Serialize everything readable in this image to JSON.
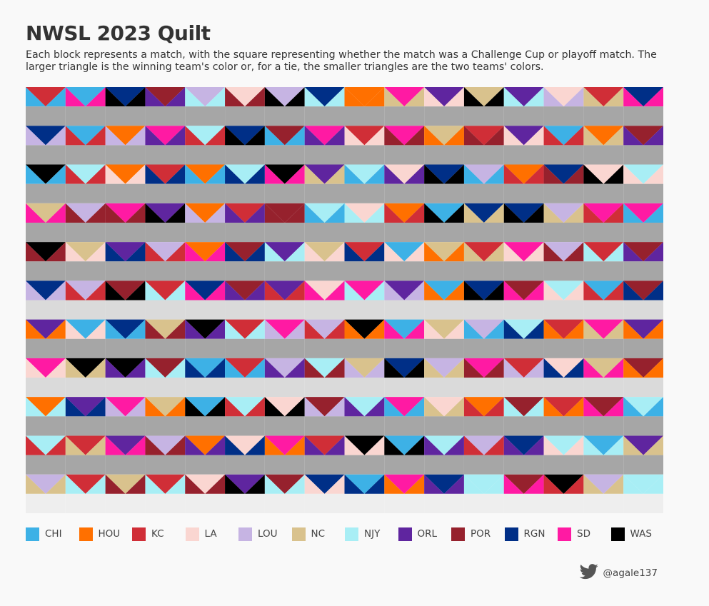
{
  "title": "NWSL 2023 Quilt",
  "subtitle": "Each block represents a match, with the square representing whether the match was a Challenge Cup or playoff match. The larger triangle is the winning team's color or, for a tie, the smaller triangles are the two teams' colors.",
  "credit": {
    "icon": "twitter-bird-icon",
    "handle": "@agale137"
  },
  "chart_data": {
    "type": "heatmap",
    "title": "NWSL 2023 Quilt",
    "grid": {
      "columns": 16,
      "rows": 11
    },
    "square_colors": {
      "challenge_cup": "#dadada",
      "regular": "#a6a6a6",
      "playoff": "#eeeeee"
    },
    "teams": [
      {
        "code": "CHI",
        "color": "#3db1e6"
      },
      {
        "code": "HOU",
        "color": "#ff7000"
      },
      {
        "code": "KC",
        "color": "#d02e37"
      },
      {
        "code": "LA",
        "color": "#fad6d1"
      },
      {
        "code": "LOU",
        "color": "#c6b4e3"
      },
      {
        "code": "NC",
        "color": "#d9c28d"
      },
      {
        "code": "NJY",
        "color": "#a8eef5"
      },
      {
        "code": "ORL",
        "color": "#5f259f"
      },
      {
        "code": "POR",
        "color": "#96212d"
      },
      {
        "code": "RGN",
        "color": "#002f87"
      },
      {
        "code": "SD",
        "color": "#ff1aa3"
      },
      {
        "code": "WAS",
        "color": "#000000"
      }
    ],
    "matches": [
      [
        "KC",
        "CHI",
        "r"
      ],
      [
        "CHI",
        "SD",
        "r"
      ],
      [
        "RGN",
        "WAS",
        "r"
      ],
      [
        "POR",
        "ORL",
        "r"
      ],
      [
        "LOU",
        "NJY",
        "r"
      ],
      [
        "LA",
        "POR",
        "r"
      ],
      [
        "LOU",
        "WAS",
        "r"
      ],
      [
        "RGN",
        "NJY",
        "r"
      ],
      [
        "HOU",
        "HOU",
        "r"
      ],
      [
        "SD",
        "NC",
        "r"
      ],
      [
        "ORL",
        "LA",
        "r"
      ],
      [
        "NC",
        "WAS",
        "r"
      ],
      [
        "ORL",
        "NJY",
        "r"
      ],
      [
        "LA",
        "LOU",
        "r"
      ],
      [
        "KC",
        "NC",
        "r"
      ],
      [
        "RGN",
        "SD",
        "r"
      ],
      [
        "RGN",
        "LOU",
        "r"
      ],
      [
        "CHI",
        "KC",
        "r"
      ],
      [
        "HOU",
        "LOU",
        "r"
      ],
      [
        "SD",
        "ORL",
        "r"
      ],
      [
        "NJY",
        "KC",
        "r"
      ],
      [
        "RGN",
        "WAS",
        "r"
      ],
      [
        "POR",
        "CHI",
        "r"
      ],
      [
        "SD",
        "ORL",
        "r"
      ],
      [
        "KC",
        "LA",
        "r"
      ],
      [
        "SD",
        "POR",
        "r"
      ],
      [
        "NC",
        "HOU",
        "r"
      ],
      [
        "KC",
        "POR",
        "r"
      ],
      [
        "ORL",
        "LA",
        "r"
      ],
      [
        "CHI",
        "KC",
        "r"
      ],
      [
        "HOU",
        "NC",
        "r"
      ],
      [
        "POR",
        "ORL",
        "r"
      ],
      [
        "WAS",
        "CHI",
        "r"
      ],
      [
        "NJY",
        "KC",
        "r"
      ],
      [
        "HOU",
        "LA",
        "r"
      ],
      [
        "KC",
        "RGN",
        "r"
      ],
      [
        "HOU",
        "CHI",
        "r"
      ],
      [
        "NJY",
        "RGN",
        "r"
      ],
      [
        "WAS",
        "SD",
        "r"
      ],
      [
        "ORL",
        "NC",
        "r"
      ],
      [
        "NJY",
        "CHI",
        "r"
      ],
      [
        "LA",
        "ORL",
        "r"
      ],
      [
        "RGN",
        "WAS",
        "r"
      ],
      [
        "LOU",
        "CHI",
        "r"
      ],
      [
        "HOU",
        "KC",
        "r"
      ],
      [
        "RGN",
        "POR",
        "r"
      ],
      [
        "LA",
        "WAS",
        "r"
      ],
      [
        "NJY",
        "LA",
        "r"
      ],
      [
        "NC",
        "SD",
        "r"
      ],
      [
        "LOU",
        "POR",
        "r"
      ],
      [
        "SD",
        "POR",
        "r"
      ],
      [
        "ORL",
        "WAS",
        "r"
      ],
      [
        "HOU",
        "LOU",
        "r"
      ],
      [
        "KC",
        "ORL",
        "r"
      ],
      [
        "POR",
        "POR",
        "r"
      ],
      [
        "NJY",
        "CHI",
        "r"
      ],
      [
        "LA",
        "NJY",
        "r"
      ],
      [
        "HOU",
        "KC",
        "r"
      ],
      [
        "CHI",
        "WAS",
        "r"
      ],
      [
        "RGN",
        "NC",
        "r"
      ],
      [
        "RGN",
        "WAS",
        "r"
      ],
      [
        "LOU",
        "NC",
        "r"
      ],
      [
        "SD",
        "KC",
        "r"
      ],
      [
        "SD",
        "CHI",
        "r"
      ],
      [
        "WAS",
        "POR",
        "r"
      ],
      [
        "NC",
        "LA",
        "r"
      ],
      [
        "ORL",
        "RGN",
        "r"
      ],
      [
        "LOU",
        "KC",
        "r"
      ],
      [
        "HOU",
        "SD",
        "r"
      ],
      [
        "POR",
        "RGN",
        "r"
      ],
      [
        "ORL",
        "NJY",
        "r"
      ],
      [
        "NC",
        "LA",
        "r"
      ],
      [
        "KC",
        "RGN",
        "r"
      ],
      [
        "CHI",
        "LA",
        "r"
      ],
      [
        "NC",
        "HOU",
        "r"
      ],
      [
        "KC",
        "NC",
        "r"
      ],
      [
        "SD",
        "LA",
        "r"
      ],
      [
        "LOU",
        "POR",
        "r"
      ],
      [
        "KC",
        "NJY",
        "r"
      ],
      [
        "POR",
        "ORL",
        "r"
      ],
      [
        "RGN",
        "LOU",
        "c"
      ],
      [
        "LOU",
        "KC",
        "c"
      ],
      [
        "POR",
        "WAS",
        "c"
      ],
      [
        "KC",
        "NJY",
        "c"
      ],
      [
        "RGN",
        "SD",
        "c"
      ],
      [
        "POR",
        "ORL",
        "c"
      ],
      [
        "ORL",
        "KC",
        "c"
      ],
      [
        "LA",
        "SD",
        "c"
      ],
      [
        "SD",
        "NJY",
        "c"
      ],
      [
        "ORL",
        "LOU",
        "c"
      ],
      [
        "CHI",
        "HOU",
        "c"
      ],
      [
        "RGN",
        "WAS",
        "c"
      ],
      [
        "POR",
        "SD",
        "c"
      ],
      [
        "NJY",
        "LA",
        "c"
      ],
      [
        "CHI",
        "KC",
        "c"
      ],
      [
        "POR",
        "RGN",
        "c"
      ],
      [
        "ORL",
        "HOU",
        "r"
      ],
      [
        "CHI",
        "LA",
        "r"
      ],
      [
        "RGN",
        "CHI",
        "r"
      ],
      [
        "NC",
        "POR",
        "r"
      ],
      [
        "WAS",
        "ORL",
        "r"
      ],
      [
        "KC",
        "NJY",
        "r"
      ],
      [
        "SD",
        "LOU",
        "r"
      ],
      [
        "LOU",
        "KC",
        "r"
      ],
      [
        "WAS",
        "HOU",
        "r"
      ],
      [
        "CHI",
        "SD",
        "r"
      ],
      [
        "NC",
        "LA",
        "r"
      ],
      [
        "LOU",
        "CHI",
        "r"
      ],
      [
        "NJY",
        "RGN",
        "r"
      ],
      [
        "KC",
        "HOU",
        "r"
      ],
      [
        "SD",
        "NC",
        "r"
      ],
      [
        "ORL",
        "HOU",
        "r"
      ],
      [
        "SD",
        "LA",
        "c"
      ],
      [
        "WAS",
        "NC",
        "c"
      ],
      [
        "WAS",
        "ORL",
        "c"
      ],
      [
        "POR",
        "NJY",
        "c"
      ],
      [
        "CHI",
        "RGN",
        "c"
      ],
      [
        "KC",
        "CHI",
        "c"
      ],
      [
        "LOU",
        "ORL",
        "c"
      ],
      [
        "NJY",
        "POR",
        "c"
      ],
      [
        "NC",
        "LOU",
        "c"
      ],
      [
        "RGN",
        "WAS",
        "c"
      ],
      [
        "LOU",
        "NC",
        "c"
      ],
      [
        "SD",
        "POR",
        "c"
      ],
      [
        "KC",
        "LOU",
        "c"
      ],
      [
        "LA",
        "RGN",
        "c"
      ],
      [
        "NC",
        "SD",
        "c"
      ],
      [
        "POR",
        "HOU",
        "c"
      ],
      [
        "HOU",
        "NJY",
        "r"
      ],
      [
        "ORL",
        "RGN",
        "r"
      ],
      [
        "SD",
        "LOU",
        "r"
      ],
      [
        "NC",
        "HOU",
        "r"
      ],
      [
        "CHI",
        "WAS",
        "r"
      ],
      [
        "NJY",
        "KC",
        "r"
      ],
      [
        "LA",
        "WAS",
        "r"
      ],
      [
        "POR",
        "LOU",
        "r"
      ],
      [
        "NJY",
        "ORL",
        "r"
      ],
      [
        "SD",
        "CHI",
        "r"
      ],
      [
        "LA",
        "NC",
        "r"
      ],
      [
        "HOU",
        "KC",
        "r"
      ],
      [
        "POR",
        "NJY",
        "r"
      ],
      [
        "KC",
        "HOU",
        "r"
      ],
      [
        "POR",
        "SD",
        "r"
      ],
      [
        "NJY",
        "CHI",
        "r"
      ],
      [
        "NJY",
        "KC",
        "r"
      ],
      [
        "KC",
        "NC",
        "r"
      ],
      [
        "ORL",
        "SD",
        "r"
      ],
      [
        "LOU",
        "POR",
        "r"
      ],
      [
        "HOU",
        "ORL",
        "r"
      ],
      [
        "LA",
        "RGN",
        "r"
      ],
      [
        "SD",
        "HOU",
        "r"
      ],
      [
        "KC",
        "ORL",
        "r"
      ],
      [
        "WAS",
        "LA",
        "r"
      ],
      [
        "CHI",
        "WAS",
        "r"
      ],
      [
        "NJY",
        "ORL",
        "r"
      ],
      [
        "LOU",
        "KC",
        "r"
      ],
      [
        "RGN",
        "ORL",
        "r"
      ],
      [
        "NJY",
        "LA",
        "r"
      ],
      [
        "CHI",
        "NJY",
        "r"
      ],
      [
        "ORL",
        "NC",
        "r"
      ],
      [
        "LOU",
        "NC",
        "p"
      ],
      [
        "KC",
        "NJY",
        "p"
      ],
      [
        "NC",
        "POR",
        "p"
      ],
      [
        "KC",
        "NJY",
        "p"
      ],
      [
        "LA",
        "POR",
        "p"
      ],
      [
        "ORL",
        "WAS",
        "p"
      ],
      [
        "POR",
        "NJY",
        "p"
      ],
      [
        "RGN",
        "LA",
        "p"
      ],
      [
        "CHI",
        "RGN",
        "p"
      ],
      [
        "SD",
        "HOU",
        "p"
      ],
      [
        "RGN",
        "ORL",
        "p"
      ],
      [
        "NJY",
        "NJY",
        "p"
      ],
      [
        "POR",
        "SD",
        "p"
      ],
      [
        "WAS",
        "KC",
        "p"
      ],
      [
        "LOU",
        "NC",
        "p"
      ],
      [
        "NJY",
        "NJY",
        "p"
      ]
    ]
  }
}
